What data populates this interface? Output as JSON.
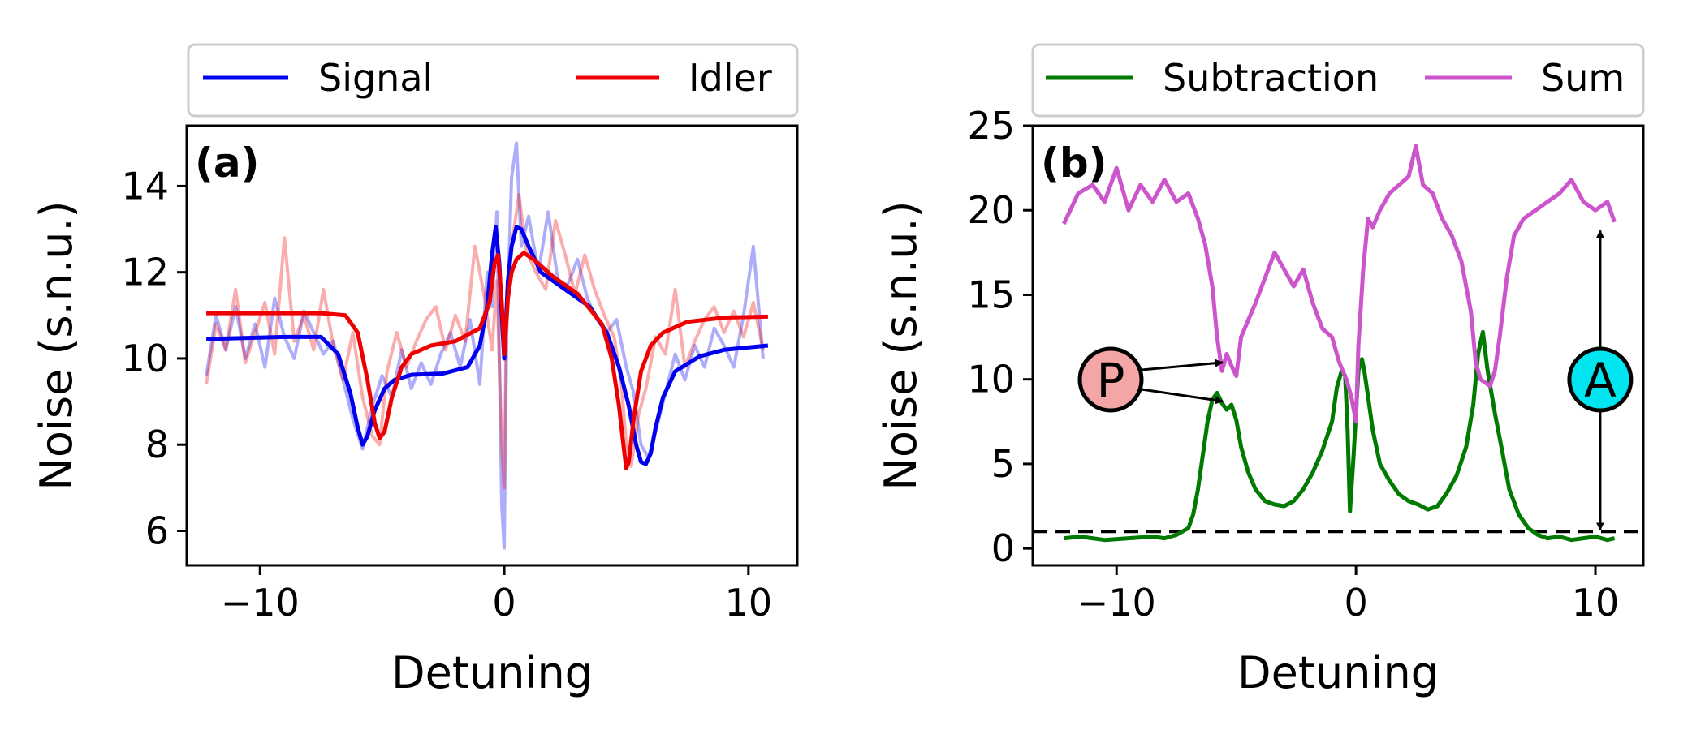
{
  "chart_data": [
    {
      "panel_label": "(a)",
      "type": "line",
      "xlabel": "Detuning",
      "ylabel": "Noise (s.n.u.)",
      "xlim": [
        -13.0,
        12.0
      ],
      "ylim": [
        5.2,
        15.4
      ],
      "xticks": [
        -10,
        0,
        10
      ],
      "xtick_labels": [
        "−10",
        "0",
        "10"
      ],
      "yticks": [
        6,
        8,
        10,
        12,
        14
      ],
      "ytick_labels": [
        "6",
        "8",
        "10",
        "12",
        "14"
      ],
      "legend": [
        "Signal",
        "Idler"
      ],
      "series": [
        {
          "name": "Signal",
          "color": "#0000ee",
          "kind": "fit",
          "x": [
            -12.2,
            -9,
            -7.5,
            -6.8,
            -6.3,
            -6.0,
            -5.8,
            -5.6,
            -5.3,
            -4.9,
            -4.5,
            -3.8,
            -2.5,
            -1.5,
            -1.0,
            -0.7,
            -0.5,
            -0.35,
            -0.2,
            -0.1,
            0,
            0.15,
            0.3,
            0.5,
            0.7,
            1.0,
            1.5,
            2.5,
            3.5,
            4.2,
            4.7,
            5.1,
            5.4,
            5.6,
            5.8,
            6.0,
            6.2,
            6.5,
            7,
            8,
            9,
            10.8
          ],
          "values": [
            10.45,
            10.5,
            10.5,
            10.1,
            9.2,
            8.4,
            8.0,
            8.2,
            8.8,
            9.3,
            9.5,
            9.62,
            9.65,
            9.8,
            10.3,
            11.2,
            12.4,
            13.05,
            12.2,
            11.0,
            10.0,
            11.8,
            12.6,
            13.05,
            13.0,
            12.6,
            12.0,
            11.6,
            11.2,
            10.6,
            9.8,
            8.9,
            8.0,
            7.6,
            7.55,
            7.8,
            8.4,
            9.1,
            9.7,
            10.05,
            10.2,
            10.3
          ]
        },
        {
          "name": "Idler",
          "color": "#ee0000",
          "kind": "fit",
          "x": [
            -12.2,
            -9,
            -7.5,
            -6.5,
            -6.0,
            -5.6,
            -5.3,
            -5.1,
            -4.9,
            -4.6,
            -4.2,
            -3.8,
            -3.0,
            -2.0,
            -1.0,
            -0.6,
            -0.4,
            -0.25,
            -0.1,
            0,
            0.15,
            0.3,
            0.5,
            0.8,
            1.2,
            2.0,
            3.0,
            4.0,
            4.4,
            4.7,
            4.9,
            5.0,
            5.1,
            5.3,
            5.6,
            6.0,
            6.5,
            7.5,
            9,
            10.8
          ],
          "values": [
            11.05,
            11.05,
            11.05,
            11.0,
            10.6,
            9.5,
            8.5,
            8.15,
            8.3,
            9.1,
            9.8,
            10.1,
            10.3,
            10.4,
            10.7,
            11.3,
            12.2,
            12.4,
            11.3,
            10.1,
            11.4,
            12.0,
            12.3,
            12.45,
            12.3,
            11.9,
            11.5,
            10.8,
            10.0,
            8.9,
            7.9,
            7.45,
            7.6,
            8.6,
            9.7,
            10.3,
            10.6,
            10.85,
            10.95,
            10.97
          ]
        },
        {
          "name": "Signal data",
          "color": "#0000ee",
          "kind": "data",
          "x": [
            -12.2,
            -11.8,
            -11.4,
            -11.0,
            -10.6,
            -10.2,
            -9.8,
            -9.4,
            -9.0,
            -8.6,
            -8.2,
            -7.8,
            -7.4,
            -7.0,
            -6.6,
            -6.2,
            -5.8,
            -5.4,
            -5.0,
            -4.6,
            -4.2,
            -3.8,
            -3.4,
            -3.0,
            -2.6,
            -2.2,
            -1.8,
            -1.4,
            -1.0,
            -0.7,
            -0.5,
            -0.3,
            -0.1,
            0.0,
            0.1,
            0.3,
            0.5,
            0.7,
            1.0,
            1.4,
            1.8,
            2.2,
            2.6,
            3.0,
            3.4,
            3.8,
            4.2,
            4.6,
            5.0,
            5.3,
            5.6,
            5.9,
            6.2,
            6.6,
            7.0,
            7.4,
            7.8,
            8.2,
            8.6,
            9.0,
            9.4,
            9.8,
            10.2,
            10.6
          ],
          "values": [
            9.6,
            11.0,
            10.2,
            11.2,
            10.0,
            10.8,
            9.8,
            11.4,
            10.5,
            10.0,
            11.1,
            10.6,
            10.1,
            10.4,
            9.5,
            8.6,
            7.9,
            8.9,
            9.6,
            9.1,
            10.2,
            9.3,
            9.9,
            9.4,
            10.1,
            10.6,
            9.8,
            10.9,
            9.4,
            12.0,
            11.2,
            13.4,
            6.6,
            5.6,
            10.5,
            14.2,
            15.0,
            12.6,
            13.3,
            12.0,
            13.4,
            11.8,
            11.7,
            12.3,
            11.4,
            10.9,
            10.6,
            10.9,
            9.8,
            9.2,
            8.0,
            7.7,
            8.3,
            9.2,
            10.1,
            9.5,
            10.3,
            9.8,
            10.7,
            10.3,
            9.8,
            11.0,
            12.6,
            10.0
          ]
        },
        {
          "name": "Idler data",
          "color": "#ee0000",
          "kind": "data",
          "x": [
            -12.2,
            -11.8,
            -11.4,
            -11.0,
            -10.6,
            -10.2,
            -9.8,
            -9.4,
            -9.0,
            -8.6,
            -8.2,
            -7.8,
            -7.4,
            -7.0,
            -6.6,
            -6.2,
            -5.8,
            -5.4,
            -5.1,
            -4.8,
            -4.4,
            -4.0,
            -3.6,
            -3.2,
            -2.8,
            -2.4,
            -2.0,
            -1.6,
            -1.2,
            -0.8,
            -0.5,
            -0.3,
            -0.1,
            0.0,
            0.1,
            0.3,
            0.6,
            0.9,
            1.3,
            1.7,
            2.1,
            2.5,
            2.9,
            3.3,
            3.7,
            4.1,
            4.5,
            4.8,
            5.0,
            5.2,
            5.5,
            5.8,
            6.2,
            6.6,
            7.0,
            7.4,
            7.8,
            8.2,
            8.6,
            9.0,
            9.4,
            9.8,
            10.2,
            10.6
          ],
          "values": [
            9.4,
            10.8,
            10.2,
            11.6,
            9.9,
            10.6,
            11.3,
            10.1,
            12.8,
            10.4,
            11.0,
            10.2,
            11.6,
            10.3,
            9.5,
            10.6,
            9.1,
            8.2,
            8.0,
            9.7,
            10.6,
            9.8,
            10.4,
            10.9,
            11.2,
            10.2,
            11.0,
            10.4,
            12.6,
            11.4,
            10.2,
            11.8,
            8.0,
            7.0,
            11.3,
            12.6,
            13.8,
            12.5,
            12.0,
            11.6,
            13.2,
            12.4,
            11.5,
            12.4,
            11.6,
            11.0,
            10.5,
            9.4,
            8.0,
            7.5,
            8.7,
            9.3,
            10.5,
            10.1,
            11.6,
            9.8,
            10.4,
            10.9,
            11.2,
            10.6,
            11.1,
            10.5,
            11.3,
            10.2
          ]
        }
      ]
    },
    {
      "panel_label": "(b)",
      "type": "line",
      "xlabel": "Detuning",
      "ylabel": "Noise (s.n.u.)",
      "xlim": [
        -13.5,
        12.0
      ],
      "ylim": [
        -1.0,
        25.0
      ],
      "xticks": [
        -10,
        0,
        10
      ],
      "xtick_labels": [
        "−10",
        "0",
        "10"
      ],
      "yticks": [
        0,
        5,
        10,
        15,
        20,
        25
      ],
      "ytick_labels": [
        "0",
        "5",
        "10",
        "15",
        "20",
        "25"
      ],
      "legend": [
        "Subtraction",
        "Sum"
      ],
      "reference_line": {
        "y": 1.0,
        "style": "dashed",
        "color": "#000000"
      },
      "series": [
        {
          "name": "Subtraction",
          "color": "#007a00",
          "x": [
            -12.2,
            -11.5,
            -10.5,
            -9.5,
            -8.5,
            -8.0,
            -7.5,
            -7.0,
            -6.8,
            -6.6,
            -6.4,
            -6.2,
            -6.0,
            -5.8,
            -5.6,
            -5.4,
            -5.2,
            -5.0,
            -4.8,
            -4.5,
            -4.2,
            -3.8,
            -3.4,
            -3.0,
            -2.6,
            -2.2,
            -1.8,
            -1.4,
            -1.0,
            -0.8,
            -0.6,
            -0.45,
            -0.35,
            -0.25,
            -0.1,
            0.0,
            0.1,
            0.25,
            0.35,
            0.5,
            0.7,
            1.0,
            1.4,
            1.8,
            2.2,
            2.6,
            3.0,
            3.4,
            3.8,
            4.2,
            4.6,
            4.9,
            5.1,
            5.3,
            5.5,
            5.8,
            6.1,
            6.4,
            6.8,
            7.2,
            7.6,
            8.0,
            8.5,
            9.0,
            9.5,
            10.0,
            10.5,
            10.8
          ],
          "values": [
            0.6,
            0.7,
            0.5,
            0.6,
            0.7,
            0.6,
            0.8,
            1.2,
            2.0,
            3.5,
            5.5,
            7.5,
            8.8,
            9.2,
            8.6,
            8.2,
            8.5,
            7.6,
            6.0,
            4.5,
            3.5,
            2.8,
            2.6,
            2.5,
            2.8,
            3.5,
            4.5,
            5.8,
            7.5,
            9.5,
            10.5,
            10.2,
            7.0,
            2.2,
            5.5,
            8.0,
            10.5,
            11.2,
            10.5,
            9.0,
            7.0,
            5.0,
            4.0,
            3.2,
            2.8,
            2.6,
            2.3,
            2.5,
            3.3,
            4.3,
            6.0,
            8.5,
            11.5,
            12.8,
            10.5,
            8.0,
            5.8,
            3.5,
            2.0,
            1.2,
            0.8,
            0.6,
            0.7,
            0.5,
            0.6,
            0.7,
            0.5,
            0.6
          ]
        },
        {
          "name": "Sum",
          "color": "#cc55cc",
          "x": [
            -12.2,
            -11.6,
            -11.0,
            -10.5,
            -10.0,
            -9.5,
            -9.0,
            -8.5,
            -8.0,
            -7.5,
            -7.0,
            -6.6,
            -6.3,
            -6.0,
            -5.8,
            -5.6,
            -5.4,
            -5.2,
            -5.0,
            -4.8,
            -4.5,
            -4.2,
            -3.8,
            -3.4,
            -3.0,
            -2.6,
            -2.2,
            -1.8,
            -1.4,
            -1.0,
            -0.7,
            -0.4,
            -0.2,
            0.0,
            0.1,
            0.3,
            0.5,
            0.7,
            1.0,
            1.4,
            1.8,
            2.2,
            2.5,
            2.8,
            3.2,
            3.6,
            4.0,
            4.4,
            4.8,
            5.0,
            5.2,
            5.4,
            5.6,
            5.8,
            6.0,
            6.3,
            6.6,
            7.0,
            7.5,
            8.0,
            8.5,
            9.0,
            9.5,
            10.0,
            10.5,
            10.8
          ],
          "values": [
            19.2,
            21.0,
            21.5,
            20.5,
            22.5,
            20.0,
            21.5,
            20.5,
            21.8,
            20.5,
            21.0,
            19.5,
            18.0,
            15.5,
            12.5,
            10.5,
            11.5,
            10.8,
            10.2,
            12.5,
            13.5,
            14.5,
            16.0,
            17.5,
            16.5,
            15.5,
            16.5,
            14.5,
            13.0,
            12.5,
            11.0,
            10.0,
            9.0,
            7.5,
            12.0,
            16.5,
            19.5,
            19.0,
            20.0,
            21.0,
            21.5,
            22.0,
            23.8,
            21.5,
            21.0,
            19.5,
            18.5,
            17.0,
            14.0,
            11.0,
            10.0,
            9.8,
            9.6,
            10.5,
            12.5,
            16.0,
            18.5,
            19.5,
            20.0,
            20.5,
            21.0,
            21.8,
            20.5,
            20.0,
            20.5,
            19.3
          ]
        }
      ],
      "annotations": [
        {
          "label": "P",
          "color": "#f4a6a6",
          "kind": "circle-marker",
          "arrows_to": [
            {
              "x": -5.3,
              "y": 11.0
            },
            {
              "x": -5.3,
              "y": 8.7
            }
          ]
        },
        {
          "label": "A",
          "color": "#00e5f0",
          "kind": "circle-marker",
          "arrow": {
            "x": 10.2,
            "y_from": 1.0,
            "y_to": 18.8
          }
        }
      ]
    }
  ]
}
